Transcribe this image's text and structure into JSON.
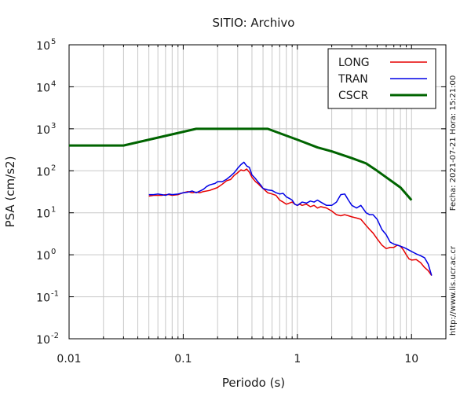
{
  "chart_data": {
    "type": "line",
    "title": "SITIO: Archivo",
    "xlabel": "Periodo (s)",
    "ylabel": "PSA (cm/s2)",
    "xscale": "log",
    "yscale": "log",
    "xlim": [
      0.01,
      20
    ],
    "ylim": [
      0.01,
      100000
    ],
    "x_ticks": [
      {
        "value": 0.01,
        "label": "0.01"
      },
      {
        "value": 0.1,
        "label": "0.1"
      },
      {
        "value": 1,
        "label": "1"
      },
      {
        "value": 10,
        "label": "10"
      }
    ],
    "y_ticks": [
      {
        "value": 100000,
        "base": "10",
        "exp": "5"
      },
      {
        "value": 10000,
        "base": "10",
        "exp": "4"
      },
      {
        "value": 1000,
        "base": "10",
        "exp": "3"
      },
      {
        "value": 100,
        "base": "10",
        "exp": "2"
      },
      {
        "value": 10,
        "base": "10",
        "exp": "1"
      },
      {
        "value": 1,
        "base": "10",
        "exp": "0"
      },
      {
        "value": 0.1,
        "base": "10",
        "exp": "-1"
      },
      {
        "value": 0.01,
        "base": "10",
        "exp": "-2"
      }
    ],
    "grid": true,
    "legend_position": "top-right",
    "side_text_date": "Fecha: 2021-07-21  Hora: 15:21:00",
    "side_text_url": "http://www.lis.ucr.ac.cr",
    "series": [
      {
        "name": "LONG",
        "color": "#e60000",
        "points": [
          [
            0.05,
            25
          ],
          [
            0.055,
            26
          ],
          [
            0.06,
            26
          ],
          [
            0.065,
            26
          ],
          [
            0.07,
            27
          ],
          [
            0.075,
            27
          ],
          [
            0.08,
            26
          ],
          [
            0.09,
            27
          ],
          [
            0.1,
            30
          ],
          [
            0.11,
            32
          ],
          [
            0.12,
            30
          ],
          [
            0.13,
            31
          ],
          [
            0.14,
            30
          ],
          [
            0.15,
            32
          ],
          [
            0.17,
            34
          ],
          [
            0.19,
            38
          ],
          [
            0.2,
            40
          ],
          [
            0.22,
            48
          ],
          [
            0.24,
            58
          ],
          [
            0.26,
            62
          ],
          [
            0.28,
            78
          ],
          [
            0.3,
            90
          ],
          [
            0.32,
            105
          ],
          [
            0.34,
            100
          ],
          [
            0.36,
            110
          ],
          [
            0.38,
            92
          ],
          [
            0.4,
            70
          ],
          [
            0.43,
            55
          ],
          [
            0.45,
            50
          ],
          [
            0.48,
            42
          ],
          [
            0.5,
            38
          ],
          [
            0.55,
            30
          ],
          [
            0.6,
            28
          ],
          [
            0.65,
            26
          ],
          [
            0.7,
            20
          ],
          [
            0.75,
            18
          ],
          [
            0.8,
            16
          ],
          [
            0.85,
            17
          ],
          [
            0.9,
            18
          ],
          [
            0.95,
            16
          ],
          [
            1.0,
            15
          ],
          [
            1.05,
            16
          ],
          [
            1.1,
            15
          ],
          [
            1.2,
            16
          ],
          [
            1.3,
            14
          ],
          [
            1.4,
            15
          ],
          [
            1.5,
            13
          ],
          [
            1.6,
            14
          ],
          [
            1.8,
            13
          ],
          [
            2.0,
            11
          ],
          [
            2.2,
            9
          ],
          [
            2.4,
            8.5
          ],
          [
            2.6,
            9
          ],
          [
            2.8,
            8.5
          ],
          [
            3.0,
            8
          ],
          [
            3.3,
            7.5
          ],
          [
            3.6,
            7
          ],
          [
            4.0,
            5
          ],
          [
            4.3,
            4
          ],
          [
            4.6,
            3.3
          ],
          [
            5.0,
            2.4
          ],
          [
            5.5,
            1.7
          ],
          [
            6.0,
            1.4
          ],
          [
            6.5,
            1.5
          ],
          [
            7.0,
            1.5
          ],
          [
            7.5,
            1.7
          ],
          [
            8.0,
            1.6
          ],
          [
            8.5,
            1.3
          ],
          [
            9.0,
            1.0
          ],
          [
            9.5,
            0.8
          ],
          [
            10,
            0.75
          ],
          [
            11,
            0.77
          ],
          [
            12,
            0.65
          ],
          [
            13,
            0.5
          ],
          [
            14,
            0.42
          ],
          [
            15,
            0.32
          ]
        ]
      },
      {
        "name": "TRAN",
        "color": "#0000e6",
        "points": [
          [
            0.05,
            27
          ],
          [
            0.055,
            27
          ],
          [
            0.06,
            28
          ],
          [
            0.065,
            27
          ],
          [
            0.07,
            26
          ],
          [
            0.075,
            28
          ],
          [
            0.08,
            27
          ],
          [
            0.09,
            28
          ],
          [
            0.1,
            30
          ],
          [
            0.11,
            31
          ],
          [
            0.12,
            33
          ],
          [
            0.13,
            30
          ],
          [
            0.14,
            33
          ],
          [
            0.15,
            36
          ],
          [
            0.16,
            42
          ],
          [
            0.17,
            46
          ],
          [
            0.19,
            50
          ],
          [
            0.2,
            55
          ],
          [
            0.22,
            55
          ],
          [
            0.24,
            63
          ],
          [
            0.26,
            75
          ],
          [
            0.28,
            90
          ],
          [
            0.3,
            115
          ],
          [
            0.32,
            140
          ],
          [
            0.34,
            160
          ],
          [
            0.36,
            130
          ],
          [
            0.38,
            120
          ],
          [
            0.4,
            80
          ],
          [
            0.43,
            65
          ],
          [
            0.45,
            55
          ],
          [
            0.48,
            45
          ],
          [
            0.5,
            38
          ],
          [
            0.55,
            35
          ],
          [
            0.6,
            34
          ],
          [
            0.65,
            30
          ],
          [
            0.7,
            28
          ],
          [
            0.75,
            29
          ],
          [
            0.8,
            24
          ],
          [
            0.85,
            22
          ],
          [
            0.9,
            20
          ],
          [
            0.95,
            16
          ],
          [
            1.0,
            15
          ],
          [
            1.1,
            18
          ],
          [
            1.2,
            17
          ],
          [
            1.3,
            19
          ],
          [
            1.4,
            18
          ],
          [
            1.5,
            20
          ],
          [
            1.6,
            18
          ],
          [
            1.8,
            15
          ],
          [
            2.0,
            15
          ],
          [
            2.2,
            18
          ],
          [
            2.4,
            27
          ],
          [
            2.6,
            28
          ],
          [
            2.8,
            20
          ],
          [
            3.0,
            15
          ],
          [
            3.3,
            13
          ],
          [
            3.6,
            15
          ],
          [
            4.0,
            10
          ],
          [
            4.3,
            9
          ],
          [
            4.6,
            9
          ],
          [
            5.0,
            7
          ],
          [
            5.5,
            4
          ],
          [
            6.0,
            3
          ],
          [
            6.5,
            2
          ],
          [
            7.0,
            1.8
          ],
          [
            7.5,
            1.7
          ],
          [
            8.0,
            1.6
          ],
          [
            8.5,
            1.5
          ],
          [
            9.0,
            1.4
          ],
          [
            10,
            1.2
          ],
          [
            11,
            1.05
          ],
          [
            12,
            0.95
          ],
          [
            13,
            0.85
          ],
          [
            14,
            0.6
          ],
          [
            15,
            0.32
          ]
        ]
      },
      {
        "name": "CSCR",
        "color": "#006400",
        "points": [
          [
            0.01,
            400
          ],
          [
            0.03,
            400
          ],
          [
            0.13,
            1000
          ],
          [
            0.55,
            1000
          ],
          [
            1.0,
            550
          ],
          [
            1.5,
            360
          ],
          [
            2.0,
            290
          ],
          [
            3.0,
            200
          ],
          [
            4.0,
            150
          ],
          [
            5.0,
            100
          ],
          [
            6.0,
            70
          ],
          [
            8.0,
            40
          ],
          [
            10.0,
            20
          ]
        ]
      }
    ]
  }
}
